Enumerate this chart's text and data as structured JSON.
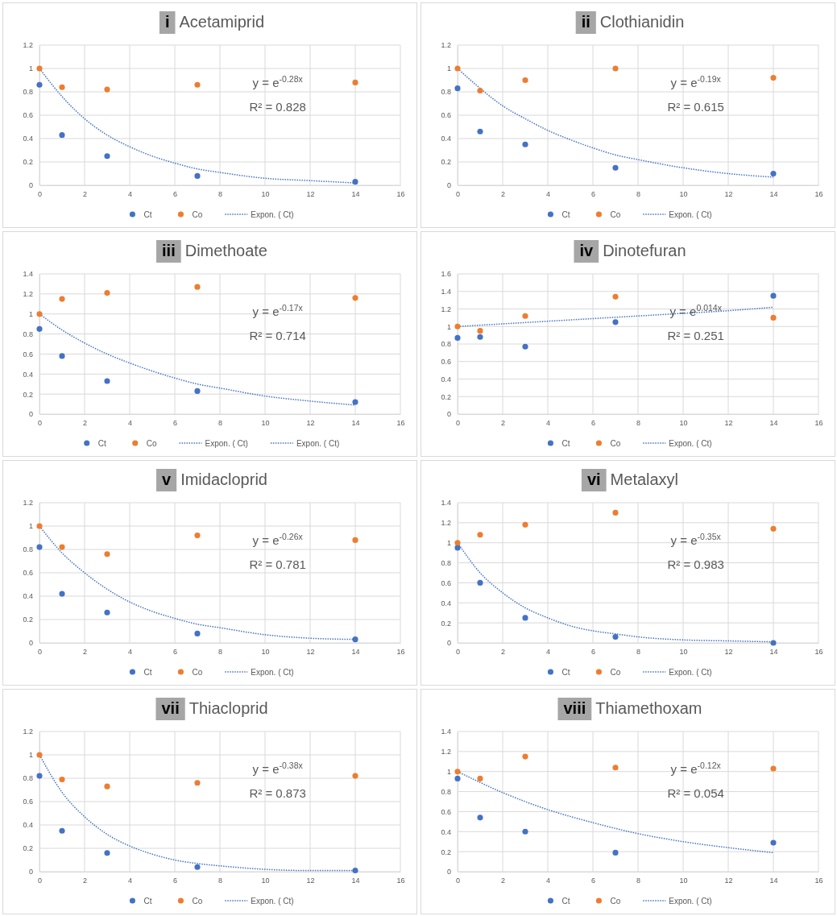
{
  "chart_data": [
    {
      "type": "scatter",
      "title": "i Acetamiprid",
      "x": [
        0,
        1,
        3,
        7,
        14
      ],
      "xlim": [
        0,
        16
      ],
      "xticks": [
        0,
        2,
        4,
        6,
        8,
        10,
        12,
        14,
        16
      ],
      "ylim": [
        0,
        1.2
      ],
      "yticks": [
        0,
        0.2,
        0.4,
        0.6,
        0.8,
        1,
        1.2
      ],
      "grid": true,
      "legend": "bottom",
      "series": [
        {
          "name": "Ct",
          "color": "#4472c4",
          "marker": "circle",
          "values": [
            0.86,
            0.43,
            0.25,
            0.08,
            0.03
          ]
        },
        {
          "name": "Co",
          "color": "#ed7d31",
          "marker": "circle",
          "values": [
            1,
            0.84,
            0.82,
            0.86,
            0.88
          ]
        },
        {
          "name": "Expon. ( Ct)",
          "type": "line",
          "line_style": "dotted",
          "color": "#4472c4",
          "x": [
            0,
            1,
            2,
            3,
            4,
            5,
            6,
            7,
            8,
            10,
            12,
            14
          ],
          "values": [
            1,
            0.76,
            0.57,
            0.43,
            0.33,
            0.25,
            0.19,
            0.14,
            0.11,
            0.06,
            0.04,
            0.02
          ]
        }
      ],
      "annotations": [
        "y = e$^{-0.28x}$",
        "R² = 0.828"
      ]
    },
    {
      "type": "scatter",
      "title": "ii Clothianidin",
      "x": [
        0,
        1,
        3,
        7,
        14
      ],
      "xlim": [
        0,
        16
      ],
      "xticks": [
        0,
        2,
        4,
        6,
        8,
        10,
        12,
        14,
        16
      ],
      "ylim": [
        0,
        1.2
      ],
      "yticks": [
        0,
        0.2,
        0.4,
        0.6,
        0.8,
        1,
        1.2
      ],
      "grid": true,
      "legend": "bottom",
      "series": [
        {
          "name": "Ct",
          "color": "#4472c4",
          "marker": "circle",
          "values": [
            0.83,
            0.46,
            0.35,
            0.15,
            0.1
          ]
        },
        {
          "name": "Co",
          "color": "#ed7d31",
          "marker": "circle",
          "values": [
            1,
            0.81,
            0.9,
            1,
            0.92
          ]
        },
        {
          "name": "Expon. ( Ct)",
          "type": "line",
          "line_style": "dotted",
          "color": "#4472c4",
          "x": [
            0,
            1,
            2,
            3,
            4,
            5,
            6,
            7,
            8,
            10,
            12,
            14
          ],
          "values": [
            1,
            0.83,
            0.68,
            0.57,
            0.47,
            0.39,
            0.32,
            0.26,
            0.22,
            0.15,
            0.1,
            0.07
          ]
        }
      ],
      "annotations": [
        "y = e$^{-0.19x}$",
        "R² = 0.615"
      ]
    },
    {
      "type": "scatter",
      "title": "iii Dimethoate",
      "x": [
        0,
        1,
        3,
        7,
        14
      ],
      "xlim": [
        0,
        16
      ],
      "xticks": [
        0,
        2,
        4,
        6,
        8,
        10,
        12,
        14,
        16
      ],
      "ylim": [
        0,
        1.4
      ],
      "yticks": [
        0,
        0.2,
        0.4,
        0.6,
        0.8,
        1,
        1.2,
        1.4
      ],
      "grid": true,
      "legend": "bottom",
      "series": [
        {
          "name": "Ct",
          "color": "#4472c4",
          "marker": "circle",
          "values": [
            0.85,
            0.58,
            0.33,
            0.23,
            0.12
          ]
        },
        {
          "name": "Co",
          "color": "#ed7d31",
          "marker": "circle",
          "values": [
            1,
            1.15,
            1.21,
            1.27,
            1.16
          ]
        },
        {
          "name": "Expon. ( Ct)",
          "type": "line",
          "line_style": "dotted",
          "color": "#4472c4",
          "x": [
            0,
            1,
            2,
            3,
            4,
            5,
            6,
            7,
            8,
            10,
            12,
            14
          ],
          "values": [
            1,
            0.84,
            0.71,
            0.6,
            0.51,
            0.43,
            0.36,
            0.3,
            0.26,
            0.18,
            0.13,
            0.09
          ]
        },
        {
          "name": "Expon. ( Ct)",
          "type": "line",
          "line_style": "dotted",
          "color": "#4472c4",
          "values": [
            null,
            null,
            null,
            null,
            null
          ]
        }
      ],
      "annotations": [
        "y = e$^{-0.17x}$",
        "R² = 0.714"
      ]
    },
    {
      "type": "scatter",
      "title": "iv Dinotefuran",
      "x": [
        0,
        1,
        3,
        7,
        14
      ],
      "xlim": [
        0,
        16
      ],
      "xticks": [
        0,
        2,
        4,
        6,
        8,
        10,
        12,
        14,
        16
      ],
      "ylim": [
        0,
        1.6
      ],
      "yticks": [
        0,
        0.2,
        0.4,
        0.6,
        0.8,
        1,
        1.2,
        1.4,
        1.6
      ],
      "grid": true,
      "legend": "bottom",
      "series": [
        {
          "name": "Ct",
          "color": "#4472c4",
          "marker": "circle",
          "values": [
            0.87,
            0.88,
            0.77,
            1.05,
            1.35
          ]
        },
        {
          "name": "Co",
          "color": "#ed7d31",
          "marker": "circle",
          "values": [
            1,
            0.95,
            1.12,
            1.34,
            1.1
          ]
        },
        {
          "name": "Expon. ( Ct)",
          "type": "line",
          "line_style": "dotted",
          "color": "#4472c4",
          "x": [
            0,
            2,
            4,
            6,
            8,
            10,
            12,
            14
          ],
          "values": [
            1,
            1.03,
            1.06,
            1.09,
            1.12,
            1.15,
            1.18,
            1.22
          ]
        }
      ],
      "annotations": [
        "y = e$^{0.014x}$",
        "R² = 0.251"
      ]
    },
    {
      "type": "scatter",
      "title": "v Imidacloprid",
      "x": [
        0,
        1,
        3,
        7,
        14
      ],
      "xlim": [
        0,
        16
      ],
      "xticks": [
        0,
        2,
        4,
        6,
        8,
        10,
        12,
        14,
        16
      ],
      "ylim": [
        0,
        1.2
      ],
      "yticks": [
        0,
        0.2,
        0.4,
        0.6,
        0.8,
        1,
        1.2
      ],
      "grid": true,
      "legend": "bottom",
      "series": [
        {
          "name": "Ct",
          "color": "#4472c4",
          "marker": "circle",
          "values": [
            0.82,
            0.42,
            0.26,
            0.08,
            0.03
          ]
        },
        {
          "name": "Co",
          "color": "#ed7d31",
          "marker": "circle",
          "values": [
            1,
            0.82,
            0.76,
            0.92,
            0.88
          ]
        },
        {
          "name": "Expon. ( Ct)",
          "type": "line",
          "line_style": "dotted",
          "color": "#4472c4",
          "x": [
            0,
            1,
            2,
            3,
            4,
            5,
            6,
            7,
            8,
            10,
            12,
            14
          ],
          "values": [
            1,
            0.77,
            0.6,
            0.46,
            0.35,
            0.27,
            0.21,
            0.16,
            0.13,
            0.07,
            0.04,
            0.03
          ]
        }
      ],
      "annotations": [
        "y = e$^{-0.26x}$",
        "R² = 0.781"
      ]
    },
    {
      "type": "scatter",
      "title": "vi Metalaxyl",
      "x": [
        0,
        1,
        3,
        7,
        14
      ],
      "xlim": [
        0,
        16
      ],
      "xticks": [
        0,
        2,
        4,
        6,
        8,
        10,
        12,
        14,
        16
      ],
      "ylim": [
        0,
        1.4
      ],
      "yticks": [
        0,
        0.2,
        0.4,
        0.6,
        0.8,
        1,
        1.2,
        1.4
      ],
      "grid": true,
      "legend": "bottom",
      "series": [
        {
          "name": "Ct",
          "color": "#4472c4",
          "marker": "circle",
          "values": [
            0.95,
            0.6,
            0.25,
            0.06,
            0
          ]
        },
        {
          "name": "Co",
          "color": "#ed7d31",
          "marker": "circle",
          "values": [
            1,
            1.08,
            1.18,
            1.3,
            1.14
          ]
        },
        {
          "name": "Expon. ( Ct)",
          "type": "line",
          "line_style": "dotted",
          "color": "#4472c4",
          "x": [
            0,
            1,
            2,
            3,
            4,
            5,
            6,
            7,
            8,
            10,
            12,
            14
          ],
          "values": [
            1,
            0.7,
            0.5,
            0.35,
            0.25,
            0.17,
            0.12,
            0.09,
            0.06,
            0.03,
            0.02,
            0.01
          ]
        }
      ],
      "annotations": [
        "y = e$^{-0.35x}$",
        "R² = 0.983"
      ]
    },
    {
      "type": "scatter",
      "title": "vii Thiacloprid",
      "x": [
        0,
        1,
        3,
        7,
        14
      ],
      "xlim": [
        0,
        16
      ],
      "xticks": [
        0,
        2,
        4,
        6,
        8,
        10,
        12,
        14,
        16
      ],
      "ylim": [
        0,
        1.2
      ],
      "yticks": [
        0,
        0.2,
        0.4,
        0.6,
        0.8,
        1,
        1.2
      ],
      "grid": true,
      "legend": "bottom",
      "series": [
        {
          "name": "Ct",
          "color": "#4472c4",
          "marker": "circle",
          "values": [
            0.82,
            0.35,
            0.16,
            0.04,
            0.01
          ]
        },
        {
          "name": "Co",
          "color": "#ed7d31",
          "marker": "circle",
          "values": [
            1,
            0.79,
            0.73,
            0.76,
            0.82
          ]
        },
        {
          "name": "Expon. ( Ct)",
          "type": "line",
          "line_style": "dotted",
          "color": "#4472c4",
          "x": [
            0,
            1,
            2,
            3,
            4,
            5,
            6,
            7,
            8,
            10,
            12,
            14
          ],
          "values": [
            1,
            0.68,
            0.47,
            0.32,
            0.22,
            0.15,
            0.1,
            0.07,
            0.05,
            0.02,
            0.01,
            0.01
          ]
        }
      ],
      "annotations": [
        "y = e$^{-0.38x}$",
        "R² = 0.873"
      ]
    },
    {
      "type": "scatter",
      "title": "viii Thiamethoxam",
      "x": [
        0,
        1,
        3,
        7,
        14
      ],
      "xlim": [
        0,
        16
      ],
      "xticks": [
        0,
        2,
        4,
        6,
        8,
        10,
        12,
        14,
        16
      ],
      "ylim": [
        0,
        1.4
      ],
      "yticks": [
        0,
        0.2,
        0.4,
        0.6,
        0.8,
        1,
        1.2,
        1.4
      ],
      "grid": true,
      "legend": "bottom",
      "series": [
        {
          "name": "Ct",
          "color": "#4472c4",
          "marker": "circle",
          "values": [
            0.93,
            0.54,
            0.4,
            0.19,
            0.29
          ]
        },
        {
          "name": "Co",
          "color": "#ed7d31",
          "marker": "circle",
          "values": [
            1,
            0.93,
            1.15,
            1.04,
            1.03
          ]
        },
        {
          "name": "Expon. ( Ct)",
          "type": "line",
          "line_style": "dotted",
          "color": "#4472c4",
          "x": [
            0,
            2,
            4,
            6,
            8,
            10,
            12,
            14
          ],
          "values": [
            1,
            0.79,
            0.62,
            0.49,
            0.38,
            0.3,
            0.24,
            0.19
          ]
        }
      ],
      "annotations": [
        "y = e$^{-0.12x}$",
        "R² = 0.054"
      ]
    }
  ]
}
